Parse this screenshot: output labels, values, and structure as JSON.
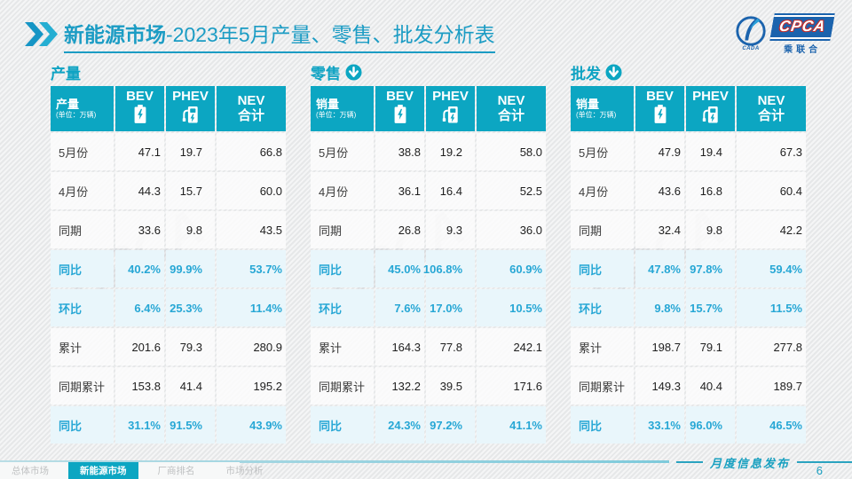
{
  "header": {
    "title_bold": "新能源市场",
    "title_rest": "-2023年5月产量、零售、批发分析表",
    "logo": {
      "cpca": "CPCA",
      "cada": "CADA",
      "sub": "乘联合"
    }
  },
  "unit_note": "(单位：万辆)",
  "watermark_text": "CPCA",
  "tables": [
    {
      "section_title": "产量",
      "show_arrow": false,
      "corner_label": "产量",
      "columns": [
        {
          "label": "BEV",
          "icon": "battery-icon"
        },
        {
          "label": "PHEV",
          "icon": "charger-icon"
        },
        {
          "label": "NEV",
          "label2": "合计",
          "icon": ""
        }
      ],
      "rows": [
        {
          "label": "5月份",
          "values": [
            "47.1",
            "19.7",
            "66.8"
          ],
          "highlight": false
        },
        {
          "label": "4月份",
          "values": [
            "44.3",
            "15.7",
            "60.0"
          ],
          "highlight": false
        },
        {
          "label": "同期",
          "values": [
            "33.6",
            "9.8",
            "43.5"
          ],
          "highlight": false
        },
        {
          "label": "同比",
          "values": [
            "40.2%",
            "99.9%",
            "53.7%"
          ],
          "highlight": true
        },
        {
          "label": "环比",
          "values": [
            "6.4%",
            "25.3%",
            "11.4%"
          ],
          "highlight": true
        },
        {
          "label": "累计",
          "values": [
            "201.6",
            "79.3",
            "280.9"
          ],
          "highlight": false
        },
        {
          "label": "同期累计",
          "values": [
            "153.8",
            "41.4",
            "195.2"
          ],
          "highlight": false
        },
        {
          "label": "同比",
          "values": [
            "31.1%",
            "91.5%",
            "43.9%"
          ],
          "highlight": true
        }
      ]
    },
    {
      "section_title": "零售",
      "show_arrow": true,
      "corner_label": "销量",
      "columns": [
        {
          "label": "BEV",
          "icon": "battery-icon"
        },
        {
          "label": "PHEV",
          "icon": "charger-icon"
        },
        {
          "label": "NEV",
          "label2": "合计",
          "icon": ""
        }
      ],
      "rows": [
        {
          "label": "5月份",
          "values": [
            "38.8",
            "19.2",
            "58.0"
          ],
          "highlight": false
        },
        {
          "label": "4月份",
          "values": [
            "36.1",
            "16.4",
            "52.5"
          ],
          "highlight": false
        },
        {
          "label": "同期",
          "values": [
            "26.8",
            "9.3",
            "36.0"
          ],
          "highlight": false
        },
        {
          "label": "同比",
          "values": [
            "45.0%",
            "106.8%",
            "60.9%"
          ],
          "highlight": true
        },
        {
          "label": "环比",
          "values": [
            "7.6%",
            "17.0%",
            "10.5%"
          ],
          "highlight": true
        },
        {
          "label": "累计",
          "values": [
            "164.3",
            "77.8",
            "242.1"
          ],
          "highlight": false
        },
        {
          "label": "同期累计",
          "values": [
            "132.2",
            "39.5",
            "171.6"
          ],
          "highlight": false
        },
        {
          "label": "同比",
          "values": [
            "24.3%",
            "97.2%",
            "41.1%"
          ],
          "highlight": true
        }
      ]
    },
    {
      "section_title": "批发",
      "show_arrow": true,
      "corner_label": "销量",
      "columns": [
        {
          "label": "BEV",
          "icon": "battery-icon"
        },
        {
          "label": "PHEV",
          "icon": "charger-icon"
        },
        {
          "label": "NEV",
          "label2": "合计",
          "icon": ""
        }
      ],
      "rows": [
        {
          "label": "5月份",
          "values": [
            "47.9",
            "19.4",
            "67.3"
          ],
          "highlight": false
        },
        {
          "label": "4月份",
          "values": [
            "43.6",
            "16.8",
            "60.4"
          ],
          "highlight": false
        },
        {
          "label": "同期",
          "values": [
            "32.4",
            "9.8",
            "42.2"
          ],
          "highlight": false
        },
        {
          "label": "同比",
          "values": [
            "47.8%",
            "97.8%",
            "59.4%"
          ],
          "highlight": true
        },
        {
          "label": "环比",
          "values": [
            "9.8%",
            "15.7%",
            "11.5%"
          ],
          "highlight": true
        },
        {
          "label": "累计",
          "values": [
            "198.7",
            "79.1",
            "277.8"
          ],
          "highlight": false
        },
        {
          "label": "同期累计",
          "values": [
            "149.3",
            "40.4",
            "189.7"
          ],
          "highlight": false
        },
        {
          "label": "同比",
          "values": [
            "33.1%",
            "96.0%",
            "46.5%"
          ],
          "highlight": true
        }
      ]
    }
  ],
  "footer": {
    "tabs": [
      {
        "label": "总体市场",
        "active": false
      },
      {
        "label": "新能源市场",
        "active": true
      },
      {
        "label": "厂商排名",
        "active": false
      },
      {
        "label": "市场分析",
        "active": false
      }
    ],
    "publication": "月度信息发布",
    "page_number": "6"
  },
  "colors": {
    "header_teal": "#0ca6c2",
    "title_teal": "#1b9cc4",
    "percent_blue": "#27a7d5",
    "highlight_row_bg": "#e9f6fb",
    "logo_blue": "#1b63ad"
  }
}
